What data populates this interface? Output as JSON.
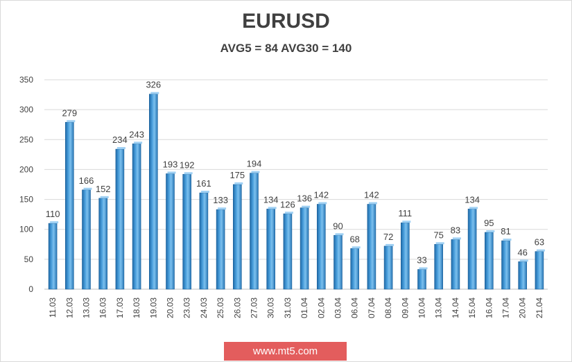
{
  "chart_data": {
    "type": "bar",
    "title": "EURUSD",
    "subtitle": "AVG5 = 84 AVG30 = 140",
    "categories": [
      "11.03",
      "12.03",
      "13.03",
      "16.03",
      "17.03",
      "18.03",
      "19.03",
      "20.03",
      "23.03",
      "24.03",
      "25.03",
      "26.03",
      "27.03",
      "30.03",
      "31.03",
      "01.04",
      "02.04",
      "03.04",
      "06.04",
      "07.04",
      "08.04",
      "09.04",
      "10.04",
      "13.04",
      "14.04",
      "15.04",
      "16.04",
      "17.04",
      "20.04",
      "21.04"
    ],
    "values": [
      110,
      279,
      166,
      152,
      234,
      243,
      326,
      193,
      192,
      161,
      133,
      175,
      194,
      134,
      126,
      136,
      142,
      90,
      68,
      142,
      72,
      111,
      33,
      75,
      83,
      134,
      95,
      81,
      46,
      63
    ],
    "ylim": [
      0,
      350
    ],
    "yticks": [
      0,
      50,
      100,
      150,
      200,
      250,
      300,
      350
    ],
    "grid": true,
    "legend": "none",
    "bar_color": "#2e86c8"
  },
  "watermark": "www.mt5.com",
  "colors": {
    "bar_light": "#6fb3e6",
    "bar_dark": "#1f6aa8",
    "grid": "#d9d9d9",
    "text": "#404040",
    "watermark_bg": "#e35d5d"
  }
}
